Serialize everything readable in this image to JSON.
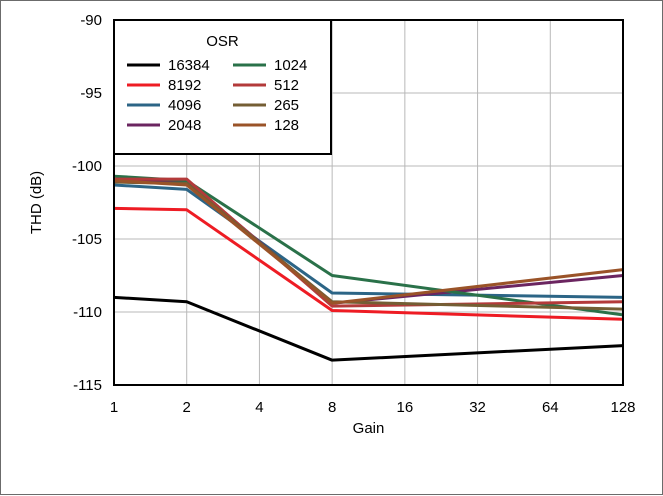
{
  "chart_data": {
    "type": "line",
    "x_scale": "log2",
    "x": [
      1,
      2,
      8,
      128
    ],
    "xticks": [
      "1",
      "2",
      "4",
      "8",
      "16",
      "32",
      "64",
      "128"
    ],
    "xtick_values": [
      1,
      2,
      4,
      8,
      16,
      32,
      64,
      128
    ],
    "xlabel": "Gain",
    "ylabel": "THD (dB)",
    "ylim": [
      -115,
      -90
    ],
    "yticks": [
      "-90",
      "-95",
      "-100",
      "-105",
      "-110",
      "-115"
    ],
    "ytick_values": [
      -90,
      -95,
      -100,
      -105,
      -110,
      -115
    ],
    "grid": true,
    "legend": {
      "title": "OSR",
      "placement": "top-left",
      "columns": 2
    },
    "series": [
      {
        "name": "16384",
        "color": "#000000",
        "values": [
          -109.0,
          -109.3,
          -113.3,
          -112.3
        ]
      },
      {
        "name": "8192",
        "color": "#ee1c24",
        "values": [
          -102.9,
          -103.0,
          -109.9,
          -110.5
        ]
      },
      {
        "name": "4096",
        "color": "#2c6586",
        "values": [
          -101.3,
          -101.6,
          -108.7,
          -109.0
        ]
      },
      {
        "name": "2048",
        "color": "#6b2560",
        "values": [
          -101.0,
          -101.0,
          -109.4,
          -107.5
        ]
      },
      {
        "name": "1024",
        "color": "#2a7149",
        "values": [
          -100.7,
          -101.0,
          -107.5,
          -110.2
        ]
      },
      {
        "name": "512",
        "color": "#b33a3a",
        "values": [
          -100.9,
          -100.9,
          -109.6,
          -109.3
        ]
      },
      {
        "name": "265",
        "color": "#745e34",
        "values": [
          -101.1,
          -101.2,
          -109.3,
          -109.8
        ]
      },
      {
        "name": "128",
        "color": "#9a5328",
        "values": [
          -101.0,
          -101.3,
          -109.4,
          -107.1
        ]
      }
    ]
  }
}
